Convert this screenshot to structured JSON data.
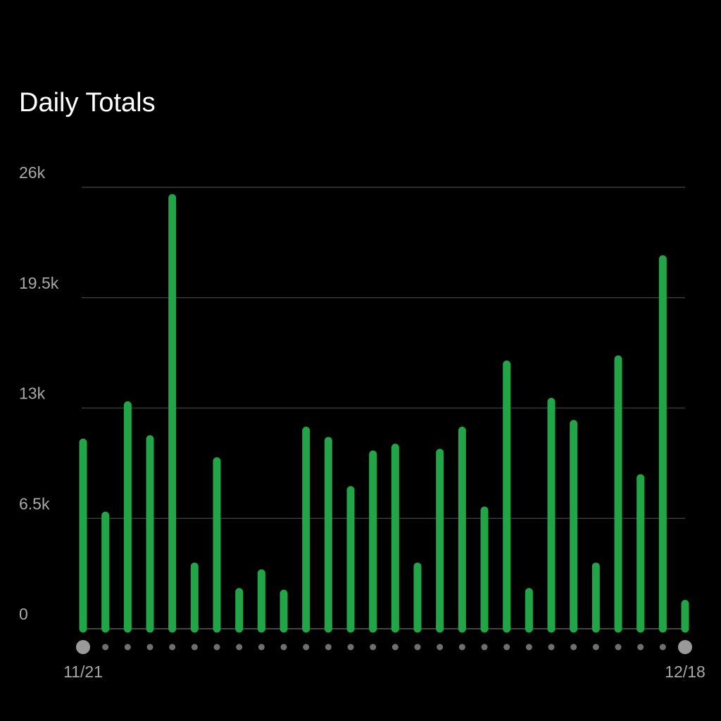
{
  "chart_data": {
    "type": "bar",
    "title": "Daily Totals",
    "xlabel": "",
    "ylabel": "",
    "ylim": [
      0,
      26000
    ],
    "yticks": [
      {
        "value": 0,
        "label": "0"
      },
      {
        "value": 6500,
        "label": "6.5k"
      },
      {
        "value": 13000,
        "label": "13k"
      },
      {
        "value": 19500,
        "label": "19.5k"
      },
      {
        "value": 26000,
        "label": "26k"
      }
    ],
    "x_start_label": "11/21",
    "x_end_label": "12/18",
    "grid": true,
    "series": [
      {
        "color": "#22a547",
        "values": [
          11200,
          6900,
          13400,
          11400,
          25600,
          3900,
          10100,
          2400,
          3500,
          2300,
          11900,
          11300,
          8400,
          10500,
          10900,
          3900,
          10600,
          11900,
          7200,
          15800,
          2400,
          13600,
          12300,
          3900,
          16100,
          9100,
          22000,
          1700
        ]
      }
    ]
  },
  "colors": {
    "background": "#000000",
    "bar": "#22a547",
    "grid": "#3a3a3a",
    "axis": "#5a5a5a",
    "dot_small": "#6f6f6f",
    "dot_endpoint": "#9a9a9a",
    "text_secondary": "#a8a8a8",
    "text_primary": "#ffffff"
  }
}
